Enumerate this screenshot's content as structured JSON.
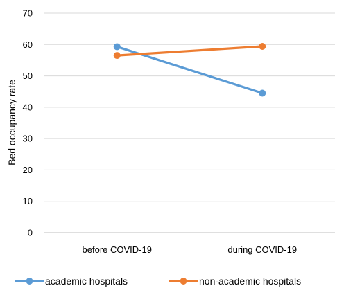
{
  "chart_data": {
    "type": "line",
    "title": "",
    "xlabel": "",
    "ylabel": "Bed occupancy rate",
    "categories": [
      "before COVID-19",
      "during COVID-19"
    ],
    "ylim": [
      0,
      70
    ],
    "yticks": [
      "0",
      "10",
      "20",
      "30",
      "40",
      "50",
      "60",
      "70"
    ],
    "grid": true,
    "legend_position": "bottom",
    "series": [
      {
        "name": "academic hospitals",
        "values": [
          59.3,
          44.5
        ],
        "color": "#5B9BD5"
      },
      {
        "name": "non-academic hospitals",
        "values": [
          56.5,
          59.4
        ],
        "color": "#ED7D31"
      }
    ]
  }
}
